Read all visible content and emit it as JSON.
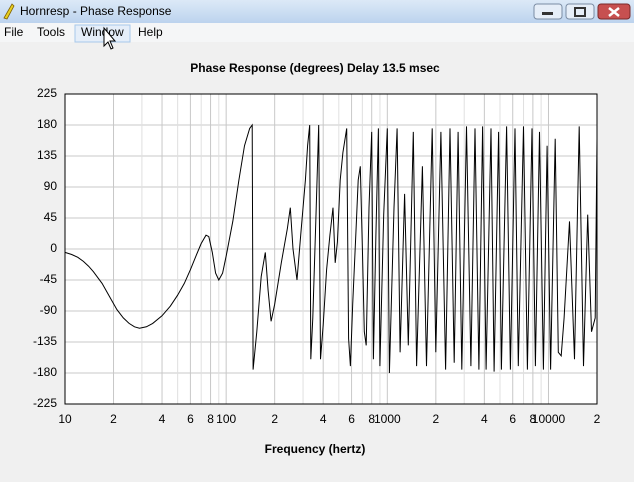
{
  "window": {
    "title": "Hornresp - Phase Response",
    "menu": [
      "File",
      "Tools",
      "Window",
      "Help"
    ]
  },
  "chart_data": {
    "type": "line",
    "title": "Phase Response (degrees)    Delay 13.5 msec",
    "x_label": "Frequency (hertz)",
    "x_log": true,
    "grid": true,
    "color": "#000000",
    "xlim": [
      10,
      20000
    ],
    "ylim": [
      -225,
      225
    ],
    "xticks": [
      10,
      {
        "value": 20,
        "label": "2"
      },
      {
        "value": 40,
        "label": "4"
      },
      {
        "value": 60,
        "label": "6"
      },
      {
        "value": 80,
        "label": "8"
      },
      100,
      {
        "value": 200,
        "label": "2"
      },
      {
        "value": 400,
        "label": "4"
      },
      {
        "value": 600,
        "label": "6"
      },
      {
        "value": 800,
        "label": "8"
      },
      1000,
      {
        "value": 2000,
        "label": "2"
      },
      {
        "value": 4000,
        "label": "4"
      },
      {
        "value": 6000,
        "label": "6"
      },
      {
        "value": 8000,
        "label": "8"
      },
      10000,
      {
        "value": 20000,
        "label": "2"
      }
    ],
    "minor_xticks": [
      30,
      50,
      70,
      90,
      300,
      500,
      700,
      900,
      3000,
      5000,
      7000,
      9000
    ],
    "yticks": [
      -225,
      -180,
      -135,
      -90,
      -45,
      0,
      45,
      90,
      135,
      180,
      225
    ],
    "x": [
      10,
      11,
      12,
      13,
      14,
      15,
      17,
      19,
      21,
      23,
      25,
      27,
      29,
      32,
      35,
      40,
      45,
      50,
      55,
      60,
      65,
      70,
      75,
      78,
      82,
      86,
      90,
      95,
      100,
      110,
      120,
      130,
      140,
      145,
      147,
      155,
      165,
      175,
      182,
      190,
      200,
      220,
      240,
      250,
      260,
      275,
      290,
      310,
      320,
      330,
      335,
      345,
      360,
      375,
      385,
      400,
      420,
      440,
      460,
      475,
      490,
      510,
      530,
      560,
      575,
      590,
      610,
      640,
      660,
      680,
      700,
      720,
      740,
      770,
      800,
      820,
      850,
      880,
      900,
      950,
      1000,
      1030,
      1100,
      1150,
      1200,
      1280,
      1350,
      1450,
      1520,
      1650,
      1750,
      1900,
      2000,
      2150,
      2300,
      2450,
      2600,
      2750,
      2900,
      3100,
      3300,
      3500,
      3700,
      3900,
      4100,
      4400,
      4600,
      4900,
      5100,
      5500,
      5800,
      6200,
      6500,
      7000,
      7400,
      7900,
      8300,
      8800,
      9300,
      9800,
      10300,
      11000,
      11500,
      12000,
      12500,
      13500,
      14500,
      15500,
      16500,
      17500,
      18500,
      19500,
      20000
    ],
    "values": [
      -5,
      -8,
      -12,
      -18,
      -25,
      -33,
      -50,
      -70,
      -88,
      -100,
      -108,
      -113,
      -115,
      -113,
      -108,
      -97,
      -83,
      -67,
      -50,
      -30,
      -10,
      8,
      20,
      18,
      -5,
      -35,
      -45,
      -35,
      -10,
      40,
      100,
      150,
      175,
      180,
      -175,
      -120,
      -40,
      -5,
      -60,
      -105,
      -80,
      -20,
      30,
      60,
      0,
      -45,
      20,
      100,
      150,
      180,
      -160,
      -100,
      40,
      180,
      -160,
      -110,
      -30,
      20,
      60,
      -20,
      10,
      100,
      140,
      175,
      -130,
      -170,
      -80,
      30,
      100,
      120,
      0,
      -120,
      -140,
      60,
      170,
      -160,
      20,
      175,
      -170,
      50,
      175,
      -180,
      60,
      175,
      -150,
      80,
      -140,
      170,
      -170,
      120,
      -170,
      175,
      -150,
      170,
      -175,
      175,
      -165,
      170,
      -175,
      178,
      -170,
      175,
      -175,
      178,
      -175,
      175,
      -178,
      170,
      -175,
      178,
      -175,
      175,
      -170,
      178,
      -175,
      175,
      -170,
      170,
      -175,
      150,
      -175,
      160,
      -150,
      -155,
      -100,
      40,
      -160,
      178,
      -170,
      50,
      -120,
      -100,
      160
    ]
  }
}
